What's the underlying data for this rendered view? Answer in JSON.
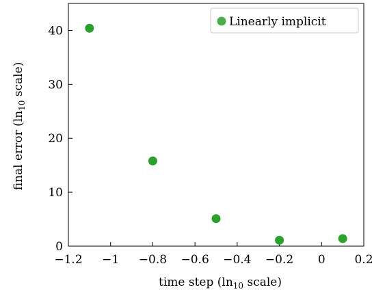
{
  "chart_data": {
    "type": "scatter",
    "title": "",
    "xlabel": "time step (ln10 scale)",
    "ylabel": "final error (ln10 scale)",
    "xlabel_parts": {
      "pre": "time step (ln",
      "sub": "10",
      "post": " scale)"
    },
    "ylabel_parts": {
      "pre": "final error (ln",
      "sub": "10",
      "post": " scale)"
    },
    "xlim": [
      -1.2,
      0.2
    ],
    "ylim": [
      0,
      45
    ],
    "xticks": [
      -1.2,
      -1.0,
      -0.8,
      -0.6,
      -0.4,
      -0.2,
      0.0,
      0.2
    ],
    "xtick_labels": [
      "−1.2",
      "−1",
      "−0.8",
      "−0.6",
      "−0.4",
      "−0.2",
      "0",
      "0.2"
    ],
    "yticks": [
      0,
      10,
      20,
      30,
      40
    ],
    "ytick_labels": [
      "0",
      "10",
      "20",
      "30",
      "40"
    ],
    "grid": false,
    "legend_position": "top-right",
    "series": [
      {
        "name": "Linearly implicit",
        "color": "#2ca02c",
        "x": [
          -1.1,
          -0.8,
          -0.5,
          -0.2,
          0.1
        ],
        "y": [
          40.4,
          15.8,
          5.1,
          1.1,
          1.4
        ]
      }
    ]
  }
}
